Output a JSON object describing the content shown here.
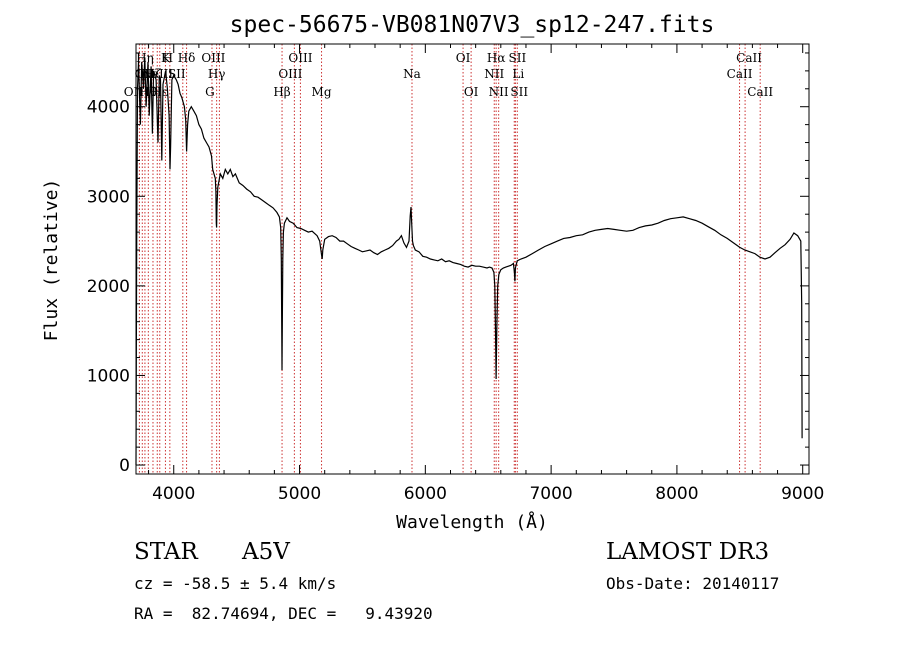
{
  "chart_data": {
    "type": "line",
    "title": "spec-56675-VB081N07V3_sp12-247.fits",
    "xlabel": "Wavelength (Å)",
    "ylabel": "Flux (relative)",
    "xlim": [
      3700,
      9050
    ],
    "ylim": [
      -100,
      4700
    ],
    "xticks": [
      4000,
      5000,
      6000,
      7000,
      8000,
      9000
    ],
    "yticks": [
      0,
      1000,
      2000,
      3000,
      4000
    ],
    "grid": false,
    "series": [
      {
        "name": "flux",
        "color": "#000000",
        "points": [
          [
            3700,
            0
          ],
          [
            3705,
            2200
          ],
          [
            3712,
            4200
          ],
          [
            3720,
            4500
          ],
          [
            3735,
            3800
          ],
          [
            3745,
            4500
          ],
          [
            3760,
            4200
          ],
          [
            3770,
            4550
          ],
          [
            3780,
            4000
          ],
          [
            3795,
            4500
          ],
          [
            3805,
            3900
          ],
          [
            3820,
            4450
          ],
          [
            3830,
            3700
          ],
          [
            3840,
            4400
          ],
          [
            3860,
            4300
          ],
          [
            3875,
            3600
          ],
          [
            3885,
            4350
          ],
          [
            3895,
            4300
          ],
          [
            3905,
            3400
          ],
          [
            3915,
            4250
          ],
          [
            3935,
            4400
          ],
          [
            3950,
            4200
          ],
          [
            3963,
            3900
          ],
          [
            3970,
            3300
          ],
          [
            3975,
            3550
          ],
          [
            3985,
            4300
          ],
          [
            4000,
            4350
          ],
          [
            4020,
            4300
          ],
          [
            4035,
            4250
          ],
          [
            4050,
            4150
          ],
          [
            4065,
            4100
          ],
          [
            4085,
            4000
          ],
          [
            4095,
            3850
          ],
          [
            4102,
            3500
          ],
          [
            4110,
            3800
          ],
          [
            4120,
            3950
          ],
          [
            4140,
            4000
          ],
          [
            4160,
            3950
          ],
          [
            4180,
            3900
          ],
          [
            4200,
            3800
          ],
          [
            4220,
            3750
          ],
          [
            4240,
            3650
          ],
          [
            4260,
            3600
          ],
          [
            4280,
            3550
          ],
          [
            4300,
            3450
          ],
          [
            4310,
            3300
          ],
          [
            4320,
            3250
          ],
          [
            4330,
            3200
          ],
          [
            4335,
            3050
          ],
          [
            4338,
            2700
          ],
          [
            4341,
            2650
          ],
          [
            4344,
            2900
          ],
          [
            4350,
            3100
          ],
          [
            4370,
            3250
          ],
          [
            4390,
            3200
          ],
          [
            4410,
            3300
          ],
          [
            4430,
            3250
          ],
          [
            4450,
            3300
          ],
          [
            4470,
            3220
          ],
          [
            4490,
            3250
          ],
          [
            4520,
            3150
          ],
          [
            4550,
            3120
          ],
          [
            4580,
            3080
          ],
          [
            4610,
            3050
          ],
          [
            4640,
            3000
          ],
          [
            4670,
            2990
          ],
          [
            4700,
            2960
          ],
          [
            4730,
            2930
          ],
          [
            4760,
            2900
          ],
          [
            4790,
            2870
          ],
          [
            4820,
            2820
          ],
          [
            4840,
            2770
          ],
          [
            4850,
            2650
          ],
          [
            4855,
            2300
          ],
          [
            4858,
            1600
          ],
          [
            4861,
            1060
          ],
          [
            4864,
            1700
          ],
          [
            4867,
            2300
          ],
          [
            4872,
            2600
          ],
          [
            4880,
            2700
          ],
          [
            4900,
            2760
          ],
          [
            4920,
            2720
          ],
          [
            4950,
            2700
          ],
          [
            4980,
            2650
          ],
          [
            5010,
            2640
          ],
          [
            5040,
            2620
          ],
          [
            5070,
            2600
          ],
          [
            5100,
            2610
          ],
          [
            5140,
            2560
          ],
          [
            5160,
            2500
          ],
          [
            5175,
            2350
          ],
          [
            5180,
            2300
          ],
          [
            5185,
            2400
          ],
          [
            5200,
            2520
          ],
          [
            5230,
            2550
          ],
          [
            5260,
            2560
          ],
          [
            5290,
            2540
          ],
          [
            5320,
            2500
          ],
          [
            5350,
            2500
          ],
          [
            5380,
            2470
          ],
          [
            5410,
            2440
          ],
          [
            5440,
            2420
          ],
          [
            5470,
            2400
          ],
          [
            5500,
            2380
          ],
          [
            5530,
            2390
          ],
          [
            5560,
            2400
          ],
          [
            5590,
            2370
          ],
          [
            5620,
            2350
          ],
          [
            5650,
            2380
          ],
          [
            5680,
            2400
          ],
          [
            5710,
            2420
          ],
          [
            5740,
            2450
          ],
          [
            5770,
            2500
          ],
          [
            5790,
            2520
          ],
          [
            5810,
            2560
          ],
          [
            5830,
            2480
          ],
          [
            5850,
            2430
          ],
          [
            5870,
            2500
          ],
          [
            5880,
            2780
          ],
          [
            5886,
            2880
          ],
          [
            5892,
            2700
          ],
          [
            5898,
            2500
          ],
          [
            5905,
            2450
          ],
          [
            5920,
            2400
          ],
          [
            5950,
            2380
          ],
          [
            5980,
            2330
          ],
          [
            6010,
            2320
          ],
          [
            6040,
            2300
          ],
          [
            6070,
            2290
          ],
          [
            6100,
            2280
          ],
          [
            6130,
            2300
          ],
          [
            6160,
            2270
          ],
          [
            6190,
            2280
          ],
          [
            6220,
            2260
          ],
          [
            6250,
            2250
          ],
          [
            6280,
            2240
          ],
          [
            6310,
            2220
          ],
          [
            6340,
            2210
          ],
          [
            6370,
            2230
          ],
          [
            6400,
            2220
          ],
          [
            6430,
            2220
          ],
          [
            6460,
            2210
          ],
          [
            6490,
            2200
          ],
          [
            6510,
            2210
          ],
          [
            6530,
            2200
          ],
          [
            6545,
            2150
          ],
          [
            6552,
            2000
          ],
          [
            6558,
            1500
          ],
          [
            6563,
            960
          ],
          [
            6568,
            1500
          ],
          [
            6575,
            2000
          ],
          [
            6585,
            2130
          ],
          [
            6600,
            2180
          ],
          [
            6620,
            2200
          ],
          [
            6640,
            2210
          ],
          [
            6660,
            2220
          ],
          [
            6680,
            2230
          ],
          [
            6700,
            2250
          ],
          [
            6708,
            2150
          ],
          [
            6712,
            2050
          ],
          [
            6716,
            2200
          ],
          [
            6730,
            2280
          ],
          [
            6760,
            2300
          ],
          [
            6800,
            2320
          ],
          [
            6850,
            2360
          ],
          [
            6900,
            2400
          ],
          [
            6950,
            2440
          ],
          [
            7000,
            2470
          ],
          [
            7050,
            2500
          ],
          [
            7100,
            2530
          ],
          [
            7150,
            2540
          ],
          [
            7200,
            2560
          ],
          [
            7250,
            2570
          ],
          [
            7300,
            2600
          ],
          [
            7350,
            2620
          ],
          [
            7400,
            2630
          ],
          [
            7450,
            2640
          ],
          [
            7500,
            2630
          ],
          [
            7550,
            2620
          ],
          [
            7600,
            2610
          ],
          [
            7650,
            2620
          ],
          [
            7700,
            2650
          ],
          [
            7750,
            2670
          ],
          [
            7800,
            2680
          ],
          [
            7850,
            2700
          ],
          [
            7900,
            2730
          ],
          [
            7950,
            2750
          ],
          [
            8000,
            2760
          ],
          [
            8050,
            2770
          ],
          [
            8100,
            2750
          ],
          [
            8150,
            2730
          ],
          [
            8200,
            2700
          ],
          [
            8250,
            2660
          ],
          [
            8300,
            2620
          ],
          [
            8350,
            2570
          ],
          [
            8400,
            2530
          ],
          [
            8450,
            2480
          ],
          [
            8500,
            2430
          ],
          [
            8540,
            2400
          ],
          [
            8580,
            2380
          ],
          [
            8620,
            2360
          ],
          [
            8660,
            2320
          ],
          [
            8700,
            2300
          ],
          [
            8740,
            2320
          ],
          [
            8780,
            2370
          ],
          [
            8820,
            2420
          ],
          [
            8860,
            2460
          ],
          [
            8900,
            2520
          ],
          [
            8930,
            2590
          ],
          [
            8960,
            2560
          ],
          [
            8985,
            2500
          ],
          [
            8992,
            1800
          ],
          [
            8995,
            300
          ]
        ]
      }
    ],
    "line_color": "#cc3333",
    "lines": [
      {
        "x": 3727,
        "label": "OII",
        "row": 3,
        "dx": -6
      },
      {
        "x": 3750,
        "label": "OII",
        "row": 2,
        "dx": 2
      },
      {
        "x": 3771,
        "label": "Hη",
        "row": 1,
        "dx": 0
      },
      {
        "x": 3798,
        "label": "Hθ",
        "row": 3,
        "dx": 0
      },
      {
        "x": 3835,
        "label": "Hζ",
        "row": 2,
        "dx": 0
      },
      {
        "x": 3869,
        "label": "NeIII",
        "row": 2,
        "dx": 0
      },
      {
        "x": 3889,
        "label": "Hε",
        "row": 3,
        "dx": 0
      },
      {
        "x": 3934,
        "label": "K",
        "row": 1,
        "dx": 0
      },
      {
        "x": 3969,
        "label": "H",
        "row": 1,
        "dx": -2
      },
      {
        "x": 4072,
        "label": "SII",
        "row": 2,
        "dx": -6
      },
      {
        "x": 4102,
        "label": "Hδ",
        "row": 1,
        "dx": 0
      },
      {
        "x": 4304,
        "label": "G",
        "row": 3,
        "dx": -2
      },
      {
        "x": 4341,
        "label": "Hγ",
        "row": 2,
        "dx": 0
      },
      {
        "x": 4363,
        "label": "OIII",
        "row": 1,
        "dx": -6
      },
      {
        "x": 4861,
        "label": "Hβ",
        "row": 3,
        "dx": 0
      },
      {
        "x": 4959,
        "label": "OIII",
        "row": 2,
        "dx": -4
      },
      {
        "x": 5007,
        "label": "OIII",
        "row": 1,
        "dx": 0
      },
      {
        "x": 5175,
        "label": "Mg",
        "row": 3,
        "dx": 0
      },
      {
        "x": 5894,
        "label": "Na",
        "row": 2,
        "dx": 0
      },
      {
        "x": 6300,
        "label": "OI",
        "row": 1,
        "dx": 0
      },
      {
        "x": 6364,
        "label": "OI",
        "row": 3,
        "dx": 0
      },
      {
        "x": 6548,
        "label": "NII",
        "row": 2,
        "dx": 0
      },
      {
        "x": 6563,
        "label": "Hα",
        "row": 1,
        "dx": 0
      },
      {
        "x": 6583,
        "label": "NII",
        "row": 3,
        "dx": 0
      },
      {
        "x": 6707,
        "label": "Li",
        "row": 2,
        "dx": 4
      },
      {
        "x": 6716,
        "label": "SII",
        "row": 1,
        "dx": 2
      },
      {
        "x": 6731,
        "label": "SII",
        "row": 3,
        "dx": 2
      },
      {
        "x": 8498,
        "label": "CaII",
        "row": 2,
        "dx": 0
      },
      {
        "x": 8542,
        "label": "CaII",
        "row": 1,
        "dx": 4
      },
      {
        "x": 8662,
        "label": "CaII",
        "row": 3,
        "dx": 0
      }
    ]
  },
  "info": {
    "object_class": "STAR",
    "subclass": "A5V",
    "survey": "LAMOST DR3",
    "redshift": "cz = -58.5 ± 5.4 km/s",
    "obs_date": "Obs-Date: 20140117",
    "coords": "RA =  82.74694, DEC =   9.43920"
  }
}
